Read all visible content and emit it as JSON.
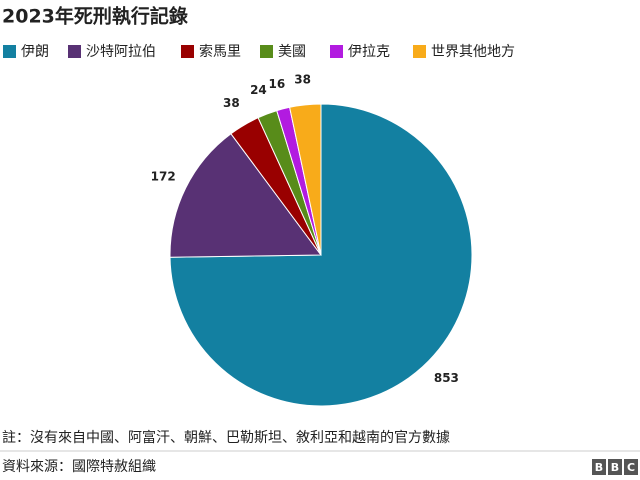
{
  "chart_data": {
    "type": "pie",
    "title": "2023年死刑執行記錄",
    "categories": [
      "伊朗",
      "沙特阿拉伯",
      "索馬里",
      "美國",
      "伊拉克",
      "世界其他地方"
    ],
    "values": [
      853,
      172,
      38,
      24,
      16,
      38
    ],
    "colors": [
      "#1380a1",
      "#583174",
      "#990000",
      "#588c1a",
      "#b21be0",
      "#f8ab1a"
    ],
    "note": "註：沒有來自中國、阿富汗、朝鮮、巴勒斯坦、敘利亞和越南的官方數據",
    "source": "資料來源：國際特赦組織",
    "logo": [
      "B",
      "B",
      "C"
    ]
  }
}
